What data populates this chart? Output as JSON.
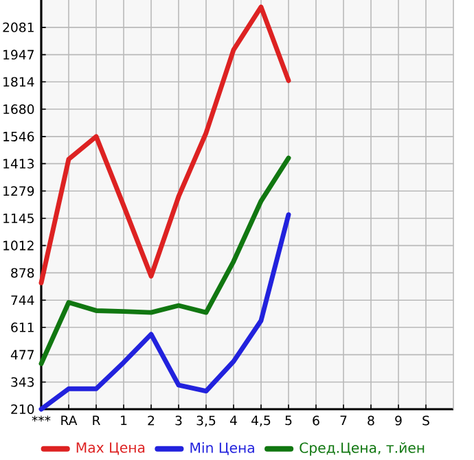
{
  "chart_data": {
    "type": "line",
    "categories": [
      "***",
      "RA",
      "R",
      "1",
      "2",
      "3",
      "3,5",
      "4",
      "4,5",
      "5",
      "6",
      "7",
      "8",
      "9",
      "S"
    ],
    "series": [
      {
        "name": "Max Цена",
        "color": "#dd2222",
        "values": [
          829,
          1435,
          1546,
          1207,
          862,
          1252,
          1564,
          1971,
          2181,
          1820,
          null,
          null,
          null,
          null,
          null
        ]
      },
      {
        "name": "Min Цена",
        "color": "#2222dd",
        "values": [
          210,
          310,
          310,
          439,
          577,
          328,
          299,
          444,
          644,
          1163,
          null,
          null,
          null,
          null,
          null
        ]
      },
      {
        "name": "Сред.Цена, т.йен",
        "color": "#117711",
        "values": [
          433,
          733,
          693,
          689,
          684,
          718,
          684,
          934,
          1230,
          1441,
          null,
          null,
          null,
          null,
          null
        ]
      }
    ],
    "ylim": [
      210,
      2215
    ],
    "yticks": [
      210,
      343,
      477,
      611,
      744,
      878,
      1012,
      1145,
      1279,
      1413,
      1546,
      1680,
      1814,
      1947,
      2081
    ],
    "grid": true,
    "legend": "bottom",
    "marker": "none",
    "line_style": "solid"
  }
}
